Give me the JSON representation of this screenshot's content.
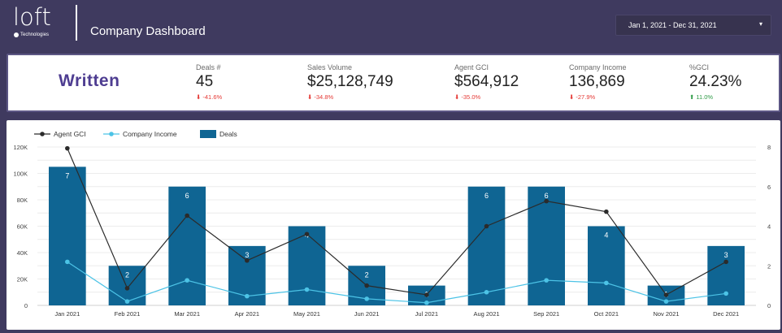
{
  "header": {
    "logo_word": "loft",
    "logo_sub": "Technologies",
    "title": "Company Dashboard",
    "date_range": "Jan 1, 2021 - Dec 31, 2021",
    "caret_icon": "caret-down-icon"
  },
  "kpis": {
    "section_label": "Written",
    "items": [
      {
        "label": "Deals #",
        "value": "45",
        "change": "-41.6%",
        "direction": "down"
      },
      {
        "label": "Sales Volume",
        "value": "$25,128,749",
        "change": "-34.8%",
        "direction": "down"
      },
      {
        "label": "Agent GCI",
        "value": "$564,912",
        "change": "-35.0%",
        "direction": "down"
      },
      {
        "label": "Company Income",
        "value": "136,869",
        "change": "-27.9%",
        "direction": "down"
      },
      {
        "label": "%GCI",
        "value": "24.23%",
        "change": "11.0%",
        "direction": "up"
      }
    ]
  },
  "colors": {
    "header_bg": "#3f3a5f",
    "bar": "#0f6593",
    "agent_line": "#2b2b2b",
    "company_line": "#4cc3e6",
    "down": "#e53935",
    "up": "#2e9b46"
  },
  "chart_data": {
    "type": "bar",
    "categories": [
      "Jan 2021",
      "Feb 2021",
      "Mar 2021",
      "Apr 2021",
      "May 2021",
      "Jun 2021",
      "Jul 2021",
      "Aug 2021",
      "Sep 2021",
      "Oct 2021",
      "Nov 2021",
      "Dec 2021"
    ],
    "series": [
      {
        "name": "Deals",
        "kind": "bar",
        "axis": "right",
        "values": [
          7,
          2,
          6,
          3,
          4,
          2,
          1,
          6,
          6,
          4,
          1,
          3
        ]
      },
      {
        "name": "Agent GCI",
        "kind": "line",
        "axis": "left",
        "values": [
          119000,
          13000,
          68000,
          34000,
          54000,
          15000,
          8000,
          60000,
          79000,
          71000,
          8000,
          33000
        ]
      },
      {
        "name": "Company Income",
        "kind": "line",
        "axis": "left",
        "values": [
          33000,
          3000,
          19000,
          7000,
          12000,
          5000,
          2000,
          10000,
          19000,
          17000,
          3000,
          9000
        ]
      }
    ],
    "left_axis": {
      "ticks": [
        "0",
        "20K",
        "40K",
        "60K",
        "80K",
        "100K",
        "120K"
      ],
      "max": 120000
    },
    "right_axis": {
      "ticks": [
        "0",
        "2",
        "4",
        "6",
        "8"
      ],
      "max": 8
    },
    "legend": [
      "Agent GCI",
      "Company Income",
      "Deals"
    ],
    "legend_position": "top-left",
    "grid": true
  }
}
